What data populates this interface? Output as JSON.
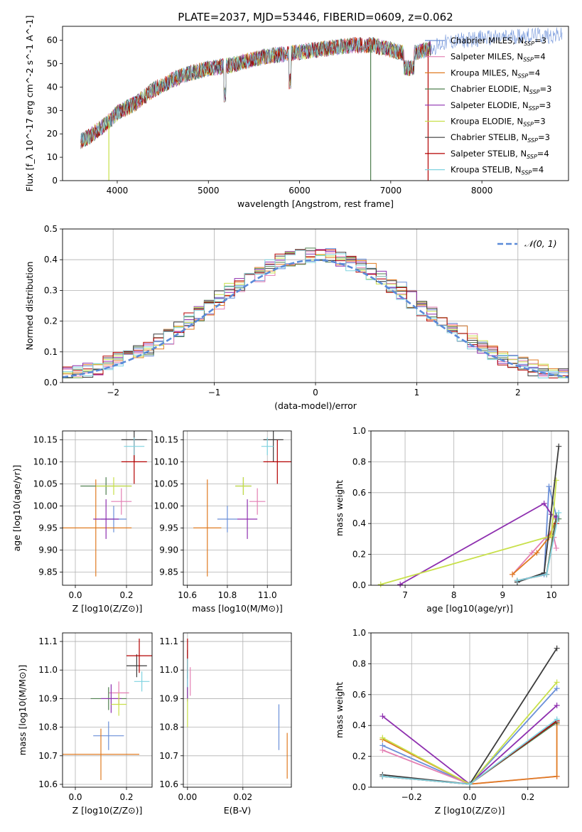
{
  "title": "PLATE=2037, MJD=53446, FIBERID=0609, z=0.062",
  "colors": [
    "#6a8fd8",
    "#e37fb3",
    "#e07b22",
    "#4f7f4f",
    "#8e2faf",
    "#c8e04a",
    "#3c3c3c",
    "#b40000",
    "#7fd3e0"
  ],
  "chart_data": [
    {
      "id": "spectrum",
      "type": "line",
      "title": "PLATE=2037, MJD=53446, FIBERID=0609, z=0.062",
      "xlabel": "wavelength [Angstrom, rest frame]",
      "ylabel": "Flux [f_λ 10^-17 erg cm^-2 s^-1 A^-1]",
      "xlim": [
        3400,
        8950
      ],
      "ylim": [
        0,
        66
      ],
      "xticks": [
        4000,
        5000,
        6000,
        7000,
        8000
      ],
      "yticks": [
        0,
        10,
        20,
        30,
        40,
        50,
        60
      ],
      "legend_position": "upper right",
      "series": [
        {
          "name": "Chabrier MILES, N_SSP=3"
        },
        {
          "name": "Salpeter MILES, N_SSP=4"
        },
        {
          "name": "Kroupa MILES, N_SSP=4"
        },
        {
          "name": "Chabrier ELODIE, N_SSP=3"
        },
        {
          "name": "Salpeter ELODIE, N_SSP=3"
        },
        {
          "name": "Kroupa ELODIE, N_SSP=3"
        },
        {
          "name": "Chabrier STELIB, N_SSP=3"
        },
        {
          "name": "Salpeter STELIB, N_SSP=4"
        },
        {
          "name": "Kroupa STELIB, N_SSP=4"
        }
      ],
      "continuum": {
        "x": [
          3600,
          3700,
          3800,
          3900,
          4000,
          4100,
          4200,
          4300,
          4400,
          4600,
          4800,
          5000,
          5200,
          5400,
          5600,
          5800,
          6000,
          6200,
          6400,
          6600,
          6800,
          7000,
          7100,
          7200,
          7400,
          7600,
          7800,
          8000,
          8200,
          8400,
          8600,
          8800
        ],
        "y": [
          17,
          19,
          22,
          25,
          29,
          31,
          33,
          36,
          39,
          43,
          46,
          48,
          49,
          51,
          53,
          54,
          55,
          56,
          57,
          58,
          58,
          56,
          55,
          54,
          56,
          59,
          60,
          61,
          61,
          62,
          62,
          62
        ]
      },
      "drops": [
        {
          "x": 3908,
          "series": "Kroupa ELODIE, N_SSP=3"
        },
        {
          "x": 6780,
          "series": "Chabrier ELODIE, N_SSP=3"
        },
        {
          "x": 7410,
          "series": "Salpeter STELIB, N_SSP=4"
        }
      ]
    },
    {
      "id": "residuals",
      "type": "step",
      "xlabel": "(data-model)/error",
      "ylabel": "Normed distribution",
      "xlim": [
        -2.5,
        2.5
      ],
      "ylim": [
        0,
        0.5
      ],
      "xticks": [
        -2,
        -1,
        0,
        1,
        2
      ],
      "yticks": [
        0.0,
        0.1,
        0.2,
        0.3,
        0.4,
        0.5
      ],
      "grid": true,
      "reference": {
        "name": "𝒩(0, 1)",
        "mean": 0,
        "sigma": 1
      }
    },
    {
      "id": "age-vs-z",
      "type": "errorbar",
      "xlabel": "Z [log10(Z/Z⊙)]",
      "ylabel": "age  [log10(age/yr)]",
      "xlim": [
        -0.05,
        0.3
      ],
      "ylim": [
        9.82,
        10.17
      ],
      "xticks": [
        0.0,
        0.2
      ],
      "yticks": [
        9.85,
        9.9,
        9.95,
        10.0,
        10.05,
        10.1,
        10.15
      ],
      "grid": true,
      "points": [
        {
          "x": 0.15,
          "xerr": 0.05,
          "y": 9.97,
          "yerr": 0.03
        },
        {
          "x": 0.18,
          "xerr": 0.04,
          "y": 10.01,
          "yerr": 0.03
        },
        {
          "x": 0.08,
          "xerr": 0.14,
          "y": 9.95,
          "yerr": 0.11
        },
        {
          "x": 0.12,
          "xerr": 0.1,
          "y": 10.045,
          "yerr": 0.02
        },
        {
          "x": 0.12,
          "xerr": 0.05,
          "y": 9.97,
          "yerr": 0.045
        },
        {
          "x": 0.15,
          "xerr": 0.07,
          "y": 10.045,
          "yerr": 0.02
        },
        {
          "x": 0.23,
          "xerr": 0.05,
          "y": 10.15,
          "yerr": 0.05
        },
        {
          "x": 0.23,
          "xerr": 0.05,
          "y": 10.1,
          "yerr": 0.05
        },
        {
          "x": 0.23,
          "xerr": 0.04,
          "y": 10.135,
          "yerr": 0.02
        }
      ]
    },
    {
      "id": "age-vs-mass",
      "type": "errorbar",
      "xlabel": "mass [log10(M/M⊙)]",
      "ylabel": "",
      "xlim": [
        10.58,
        11.12
      ],
      "ylim": [
        9.82,
        10.17
      ],
      "xticks": [
        10.6,
        10.8,
        11.0
      ],
      "yticks": [
        9.85,
        9.9,
        9.95,
        10.0,
        10.05,
        10.1,
        10.15
      ],
      "grid": true,
      "points": [
        {
          "x": 10.8,
          "xerr": 0.05,
          "y": 9.97,
          "yerr": 0.03
        },
        {
          "x": 10.95,
          "xerr": 0.04,
          "y": 10.01,
          "yerr": 0.03
        },
        {
          "x": 10.7,
          "xerr": 0.07,
          "y": 9.95,
          "yerr": 0.11
        },
        {
          "x": 10.88,
          "xerr": 0.04,
          "y": 10.045,
          "yerr": 0.02
        },
        {
          "x": 10.9,
          "xerr": 0.05,
          "y": 9.97,
          "yerr": 0.045
        },
        {
          "x": 10.88,
          "xerr": 0.04,
          "y": 10.045,
          "yerr": 0.02
        },
        {
          "x": 11.03,
          "xerr": 0.05,
          "y": 10.15,
          "yerr": 0.05
        },
        {
          "x": 11.05,
          "xerr": 0.07,
          "y": 10.1,
          "yerr": 0.05
        },
        {
          "x": 11.0,
          "xerr": 0.03,
          "y": 10.135,
          "yerr": 0.02
        }
      ]
    },
    {
      "id": "weight-vs-age",
      "type": "line",
      "xlabel": "age  [log10(age/yr)]",
      "ylabel": "mass weight",
      "xlim": [
        6.3,
        10.35
      ],
      "ylim": [
        0,
        1
      ],
      "xticks": [
        7,
        8,
        9,
        10
      ],
      "yticks": [
        0.0,
        0.2,
        0.4,
        0.6,
        0.8,
        1.0
      ],
      "grid": true,
      "series": [
        {
          "x": [
            9.3,
            9.85,
            9.95,
            10.1
          ],
          "y": [
            0.03,
            0.07,
            0.64,
            0.45
          ]
        },
        {
          "x": [
            9.2,
            9.6,
            10.0,
            10.05,
            10.1
          ],
          "y": [
            0.07,
            0.21,
            0.35,
            0.31,
            0.24
          ]
        },
        {
          "x": [
            9.2,
            9.7,
            9.95,
            10.1
          ],
          "y": [
            0.07,
            0.21,
            0.31,
            0.43
          ]
        },
        {
          "x": [
            9.3,
            9.9,
            10.1,
            10.15
          ],
          "y": [
            0.03,
            0.07,
            0.45,
            0.43
          ]
        },
        {
          "x": [
            6.9,
            9.85,
            10.0,
            10.1
          ],
          "y": [
            0.005,
            0.53,
            0.46,
            0.44
          ]
        },
        {
          "x": [
            6.5,
            10.0,
            10.1
          ],
          "y": [
            0.005,
            0.32,
            0.68
          ]
        },
        {
          "x": [
            9.3,
            9.85,
            10.15
          ],
          "y": [
            0.02,
            0.08,
            0.9
          ]
        },
        {
          "x": [
            9.3,
            9.9,
            10.1
          ],
          "y": [
            0.03,
            0.07,
            0.4
          ]
        },
        {
          "x": [
            9.3,
            9.9,
            10.15
          ],
          "y": [
            0.03,
            0.07,
            0.47
          ]
        }
      ]
    },
    {
      "id": "mass-vs-z",
      "type": "errorbar",
      "xlabel": "Z [log10(Z/Z⊙)]",
      "ylabel": "mass [log10(M/M⊙)]",
      "xlim": [
        -0.05,
        0.3
      ],
      "ylim": [
        10.59,
        11.13
      ],
      "xticks": [
        0.0,
        0.2
      ],
      "yticks": [
        10.6,
        10.7,
        10.8,
        10.9,
        11.0,
        11.1
      ],
      "grid": true,
      "points": [
        {
          "x": 0.13,
          "xerr": 0.06,
          "y": 10.77,
          "yerr": 0.05
        },
        {
          "x": 0.17,
          "xerr": 0.04,
          "y": 10.92,
          "yerr": 0.04
        },
        {
          "x": 0.1,
          "xerr": 0.15,
          "y": 10.705,
          "yerr": 0.09
        },
        {
          "x": 0.13,
          "xerr": 0.07,
          "y": 10.9,
          "yerr": 0.04
        },
        {
          "x": 0.14,
          "xerr": 0.04,
          "y": 10.9,
          "yerr": 0.05
        },
        {
          "x": 0.17,
          "xerr": 0.03,
          "y": 10.88,
          "yerr": 0.04
        },
        {
          "x": 0.24,
          "xerr": 0.04,
          "y": 11.015,
          "yerr": 0.04
        },
        {
          "x": 0.25,
          "xerr": 0.05,
          "y": 11.05,
          "yerr": 0.06
        },
        {
          "x": 0.26,
          "xerr": 0.03,
          "y": 10.96,
          "yerr": 0.035
        }
      ]
    },
    {
      "id": "mass-vs-ebv",
      "type": "errorbar",
      "xlabel": "E(B-V)",
      "ylabel": "",
      "xlim": [
        -0.0015,
        0.0375
      ],
      "ylim": [
        10.59,
        11.13
      ],
      "xticks": [
        0.0,
        0.02
      ],
      "yticks": [
        10.6,
        10.7,
        10.8,
        10.9,
        11.0,
        11.1
      ],
      "grid": true,
      "points": [
        {
          "x": 0.033,
          "xerr": 0,
          "y": 10.8,
          "yerr": 0.08
        },
        {
          "x": 0.001,
          "xerr": 0,
          "y": 10.96,
          "yerr": 0.05
        },
        {
          "x": 0.036,
          "xerr": 0,
          "y": 10.7,
          "yerr": 0.08
        },
        {
          "x": 0.0,
          "xerr": 0,
          "y": 10.95,
          "yerr": 0.05
        },
        {
          "x": 0.0,
          "xerr": 0,
          "y": 10.95,
          "yerr": 0.06
        },
        {
          "x": 0.0,
          "xerr": 0,
          "y": 10.85,
          "yerr": 0.05
        },
        {
          "x": 0.0,
          "xerr": 0,
          "y": 11.02,
          "yerr": 0.05
        },
        {
          "x": 0.0,
          "xerr": 0,
          "y": 11.05,
          "yerr": 0.06
        },
        {
          "x": 0.0,
          "xerr": 0,
          "y": 10.99,
          "yerr": 0.05
        }
      ]
    },
    {
      "id": "weight-vs-z",
      "type": "line",
      "xlabel": "Z [log10(Z/Z⊙)]",
      "ylabel": "mass weight",
      "xlim": [
        -0.34,
        0.34
      ],
      "ylim": [
        0,
        1
      ],
      "xticks": [
        -0.2,
        0.0,
        0.2
      ],
      "yticks": [
        0.0,
        0.2,
        0.4,
        0.6,
        0.8,
        1.0
      ],
      "grid": true,
      "series": [
        {
          "x": [
            -0.3,
            0.0,
            0.3
          ],
          "y": [
            0.27,
            0.02,
            0.64
          ]
        },
        {
          "x": [
            -0.3,
            0.0,
            0.3
          ],
          "y": [
            0.24,
            0.02,
            0.07
          ]
        },
        {
          "x": [
            -0.3,
            0.0,
            0.3,
            0.3
          ],
          "y": [
            0.31,
            0.02,
            0.07,
            0.41
          ]
        },
        {
          "x": [
            -0.3,
            0.0,
            0.3
          ],
          "y": [
            0.07,
            0.02,
            0.42
          ]
        },
        {
          "x": [
            -0.3,
            0.0,
            0.3
          ],
          "y": [
            0.46,
            0.02,
            0.53
          ]
        },
        {
          "x": [
            -0.3,
            0.0,
            0.3
          ],
          "y": [
            0.32,
            0.02,
            0.68
          ]
        },
        {
          "x": [
            -0.3,
            0.0,
            0.3
          ],
          "y": [
            0.08,
            0.02,
            0.9
          ]
        },
        {
          "x": [
            -0.3,
            0.0,
            0.3
          ],
          "y": [
            0.07,
            0.02,
            0.43
          ]
        },
        {
          "x": [
            -0.3,
            0.0,
            0.3
          ],
          "y": [
            0.07,
            0.02,
            0.44
          ]
        }
      ]
    }
  ]
}
